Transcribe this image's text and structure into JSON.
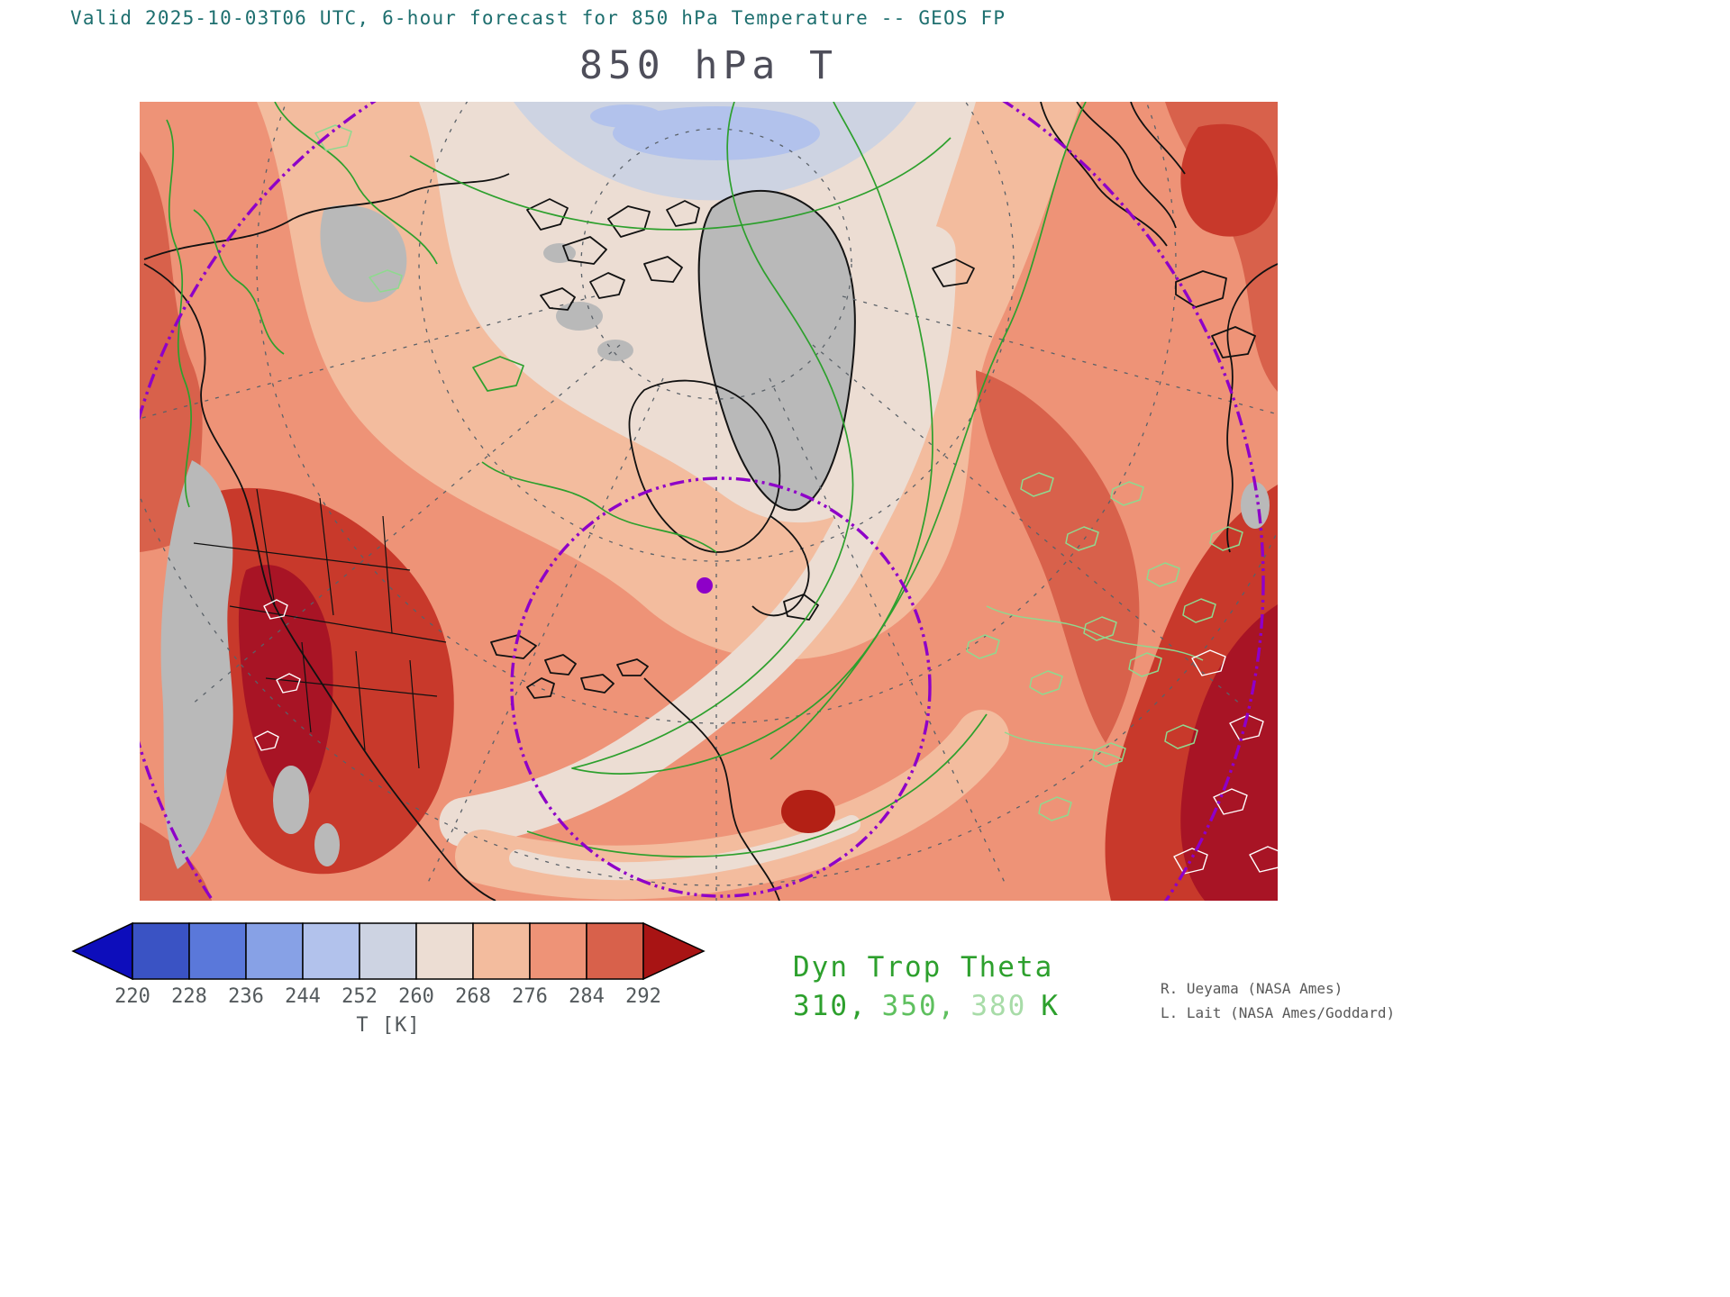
{
  "header": {
    "valid_line": "Valid 2025-10-03T06 UTC, 6-hour forecast for 850 hPa Temperature -- GEOS FP",
    "title": "850 hPa T"
  },
  "colorbar": {
    "ticks": [
      "220",
      "228",
      "236",
      "244",
      "252",
      "260",
      "268",
      "276",
      "284",
      "292"
    ],
    "unit_label": "T [K]",
    "box_colors": [
      "#3a53c4",
      "#5a78da",
      "#87a1e6",
      "#b2c2ec",
      "#cdd3e2",
      "#ecddd3",
      "#f3bc9e",
      "#ee9377",
      "#d8614b"
    ],
    "arrow_left_color": "#0d0dbb",
    "arrow_right_color": "#a81414"
  },
  "legend": {
    "title": "Dyn Trop Theta",
    "values": [
      {
        "text": "310,",
        "color": "#2da02d"
      },
      {
        "text": "350,",
        "color": "#5fc05f"
      },
      {
        "text": "380",
        "color": "#a8dca8"
      },
      {
        "text": "K",
        "color": "#2da02d"
      }
    ]
  },
  "credits": [
    "R. Ueyama (NASA Ames)",
    "L. Lait (NASA Ames/Goddard)"
  ],
  "chart_data": {
    "type": "heatmap",
    "title": "850 hPa T",
    "subtitle": "Valid 2025-10-03T06 UTC, 6-hour forecast for 850 hPa Temperature -- GEOS FP",
    "model": "GEOS FP",
    "variable": "850 hPa Temperature",
    "unit": "K",
    "colorbar_ticks": [
      220,
      228,
      236,
      244,
      252,
      260,
      268,
      276,
      284,
      292
    ],
    "colorbar_extends_below": true,
    "colorbar_extends_above": true,
    "gray_fill_meaning": "no-data / masked regions on map",
    "overlay_contours": {
      "name": "Dyn Trop Theta",
      "levels": [
        310,
        350,
        380
      ],
      "unit": "K",
      "colors": [
        "#2da02d",
        "#5fc05f",
        "#a8dca8"
      ]
    },
    "credits": [
      "R. Ueyama (NASA Ames)",
      "L. Lait (NASA Ames/Goddard)"
    ]
  }
}
